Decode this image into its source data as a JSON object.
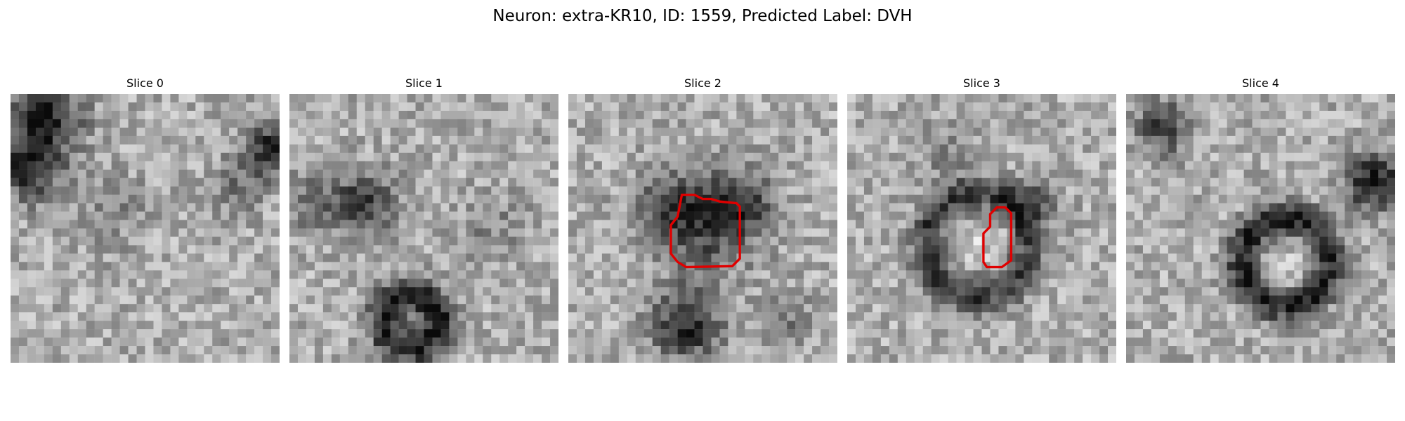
{
  "figure": {
    "title": "Neuron: extra-KR10, ID: 1559, Predicted Label: DVH"
  },
  "panels": [
    {
      "title": "Slice 0"
    },
    {
      "title": "Slice 1"
    },
    {
      "title": "Slice 2"
    },
    {
      "title": "Slice 3"
    },
    {
      "title": "Slice 4"
    }
  ],
  "colors": {
    "contour": "#e00000",
    "background": "#ffffff"
  }
}
